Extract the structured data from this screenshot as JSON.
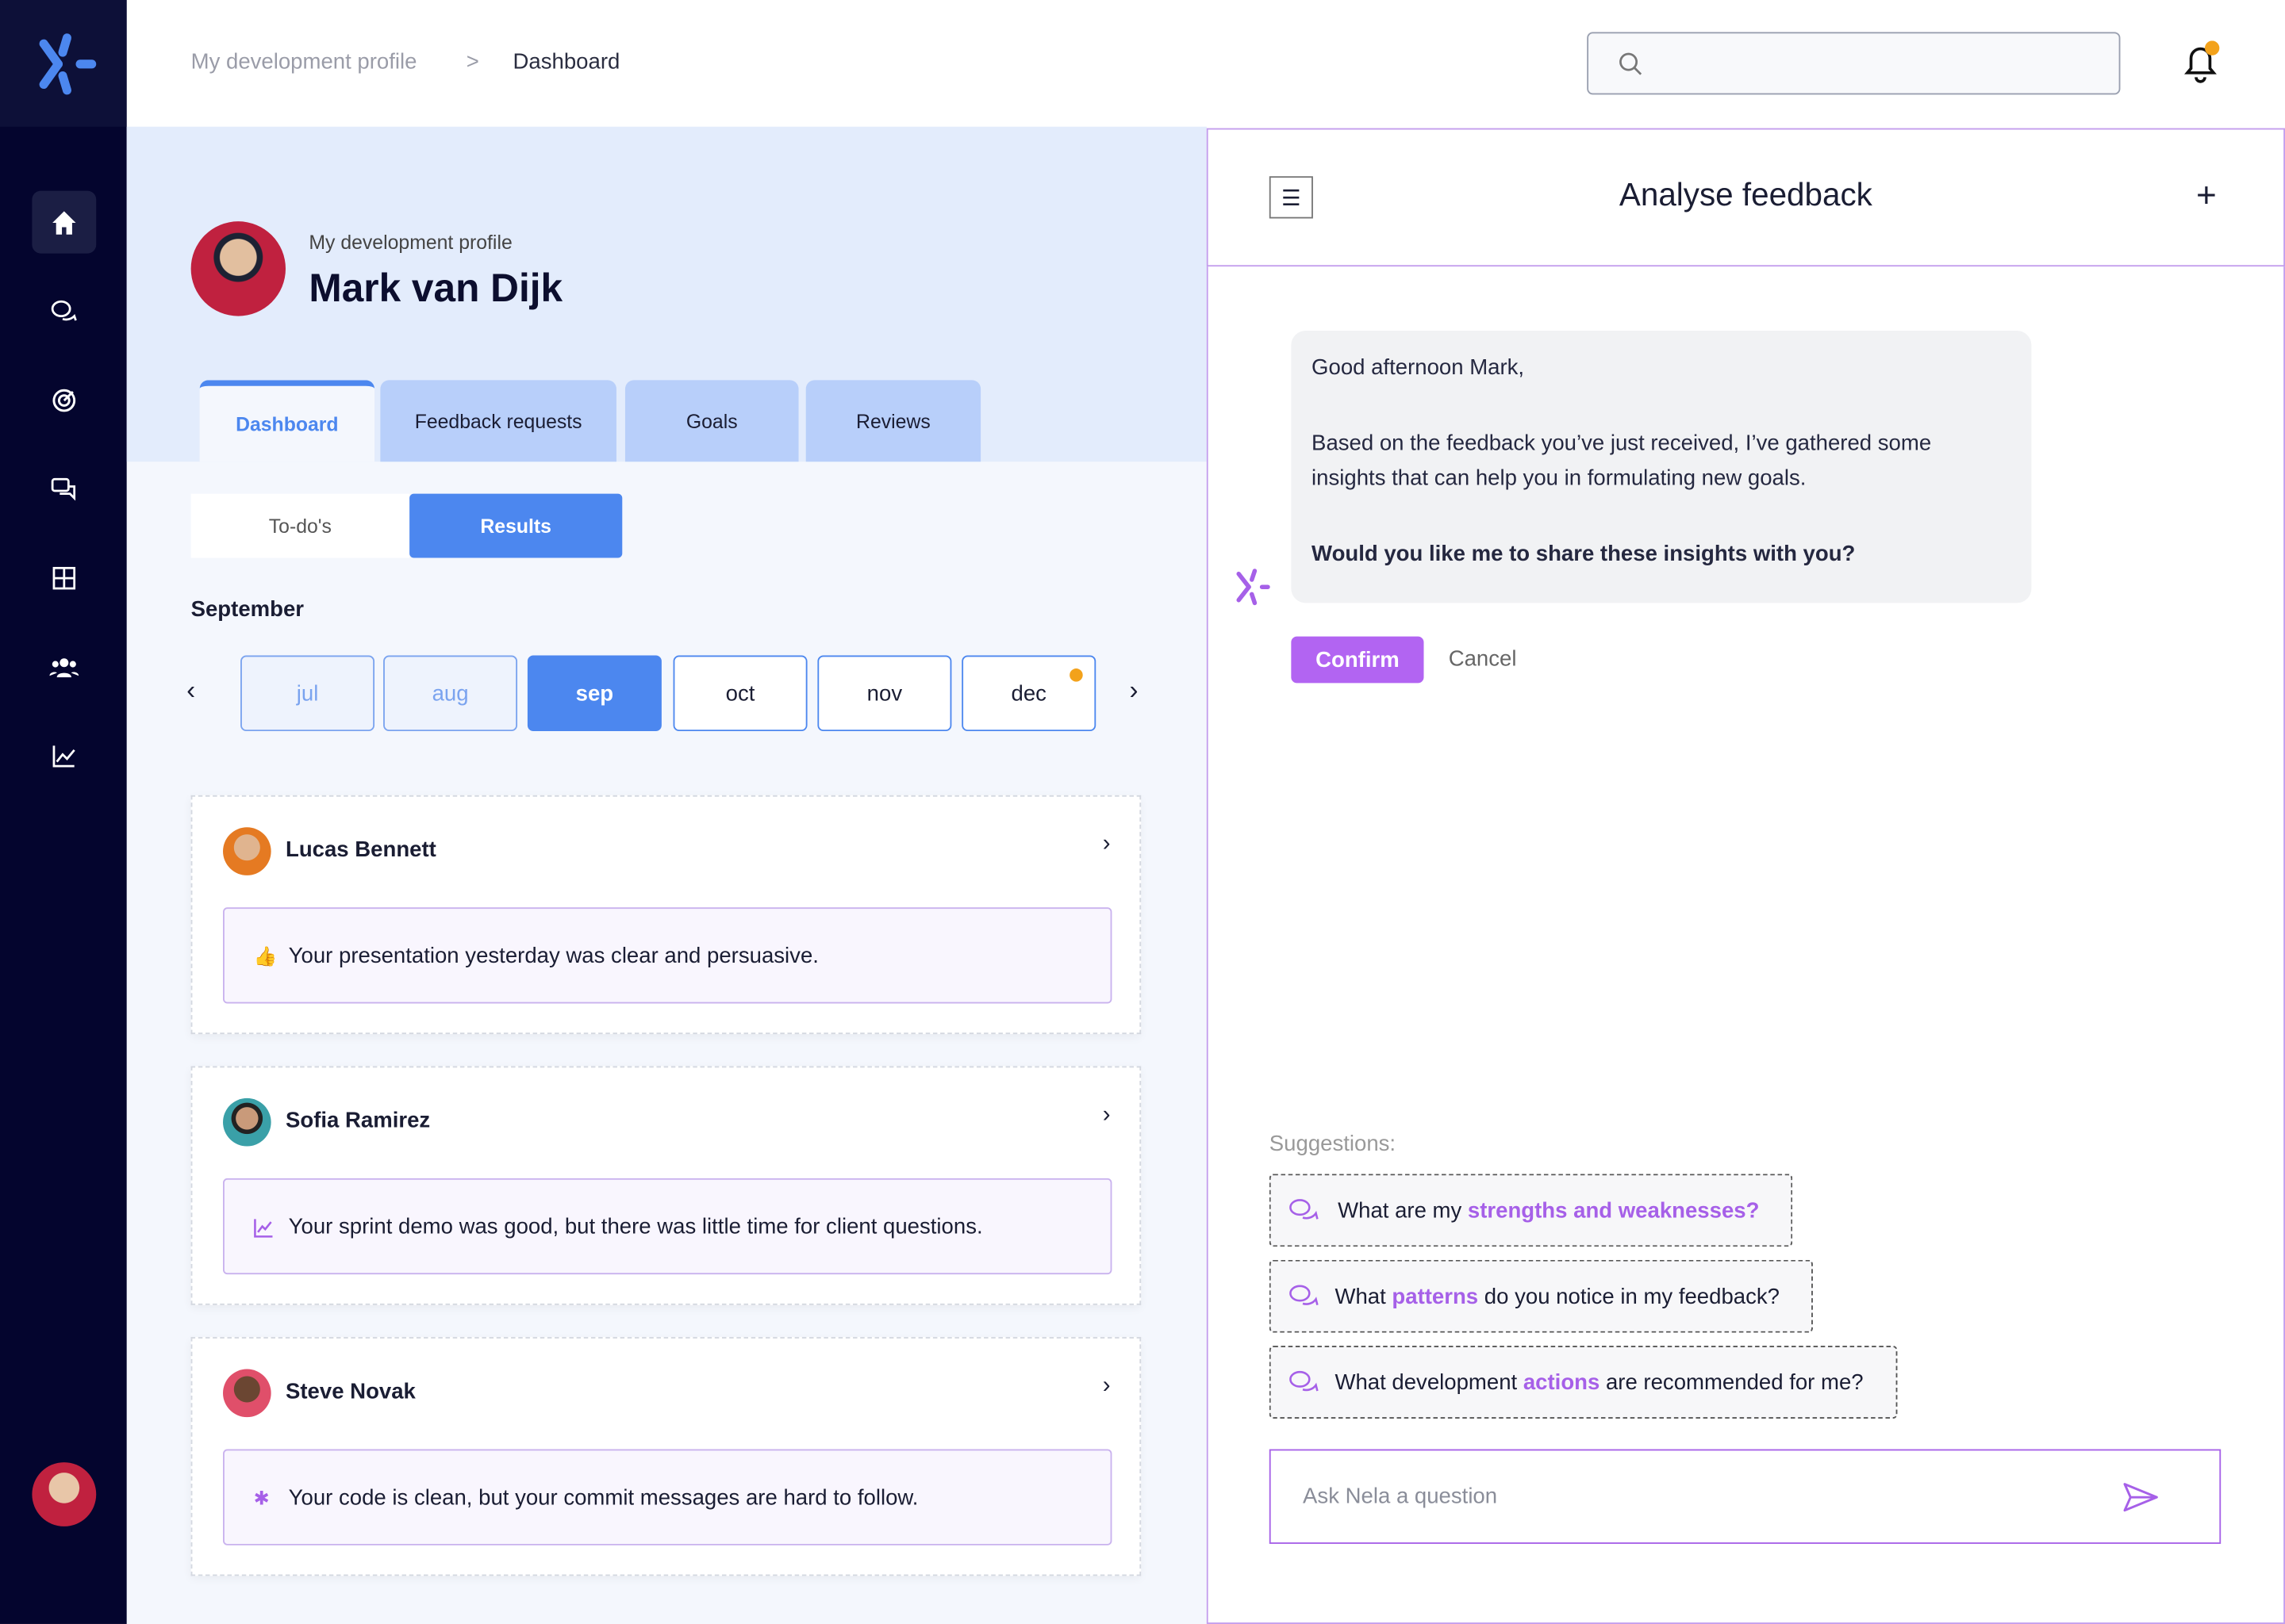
{
  "colors": {
    "sidebar": "#04052e",
    "accent_blue": "#4c87ef",
    "accent_purple": "#a660e8",
    "notification_dot": "#f3a21b"
  },
  "sidebar": {
    "items": [
      {
        "icon": "home-icon",
        "active": true
      },
      {
        "icon": "chat-bubbles-icon"
      },
      {
        "icon": "target-icon"
      },
      {
        "icon": "feedback-chat-icon"
      },
      {
        "icon": "grid-icon"
      },
      {
        "icon": "team-icon"
      },
      {
        "icon": "chart-icon"
      }
    ]
  },
  "breadcrumb": {
    "parent": "My development profile",
    "separator": ">",
    "current": "Dashboard"
  },
  "search": {
    "placeholder": ""
  },
  "profile": {
    "subtitle": "My development profile",
    "name": "Mark van Dijk"
  },
  "tabs": [
    {
      "label": "Dashboard",
      "active": true
    },
    {
      "label": "Feedback requests"
    },
    {
      "label": "Goals"
    },
    {
      "label": "Reviews"
    }
  ],
  "segments": {
    "todos": "To-do's",
    "results": "Results",
    "selected": "Results"
  },
  "month_heading": "September",
  "months": [
    "jul",
    "aug",
    "sep",
    "oct",
    "nov",
    "dec"
  ],
  "selected_month": "sep",
  "feedback": [
    {
      "name": "Lucas Bennett",
      "message": "Your presentation yesterday was clear and persuasive.",
      "icon": "thumbs-up-icon"
    },
    {
      "name": "Sofia Ramirez",
      "message": "Your sprint demo was good, but there was little time for client questions.",
      "icon": "chart-line-icon"
    },
    {
      "name": "Steve Novak",
      "message": "Your code is clean, but your commit messages are hard to follow.",
      "icon": "nela-icon"
    }
  ],
  "assistant": {
    "title": "Analyse feedback",
    "greeting": "Good afternoon Mark,",
    "body": "Based on the feedback you’ve just received, I’ve gathered some insights that can help you in formulating new goals.",
    "question": "Would you like me to share these insights with you?",
    "confirm": "Confirm",
    "cancel": "Cancel",
    "suggestions_label": "Suggestions:",
    "suggestions": [
      {
        "pre": "What are my ",
        "hl": "strengths and weaknesses?",
        "post": ""
      },
      {
        "pre": "What ",
        "hl": "patterns",
        "post": " do you notice in my feedback?"
      },
      {
        "pre": "What development ",
        "hl": "actions",
        "post": " are recommended for me?"
      }
    ],
    "input_placeholder": "Ask Nela a question"
  }
}
